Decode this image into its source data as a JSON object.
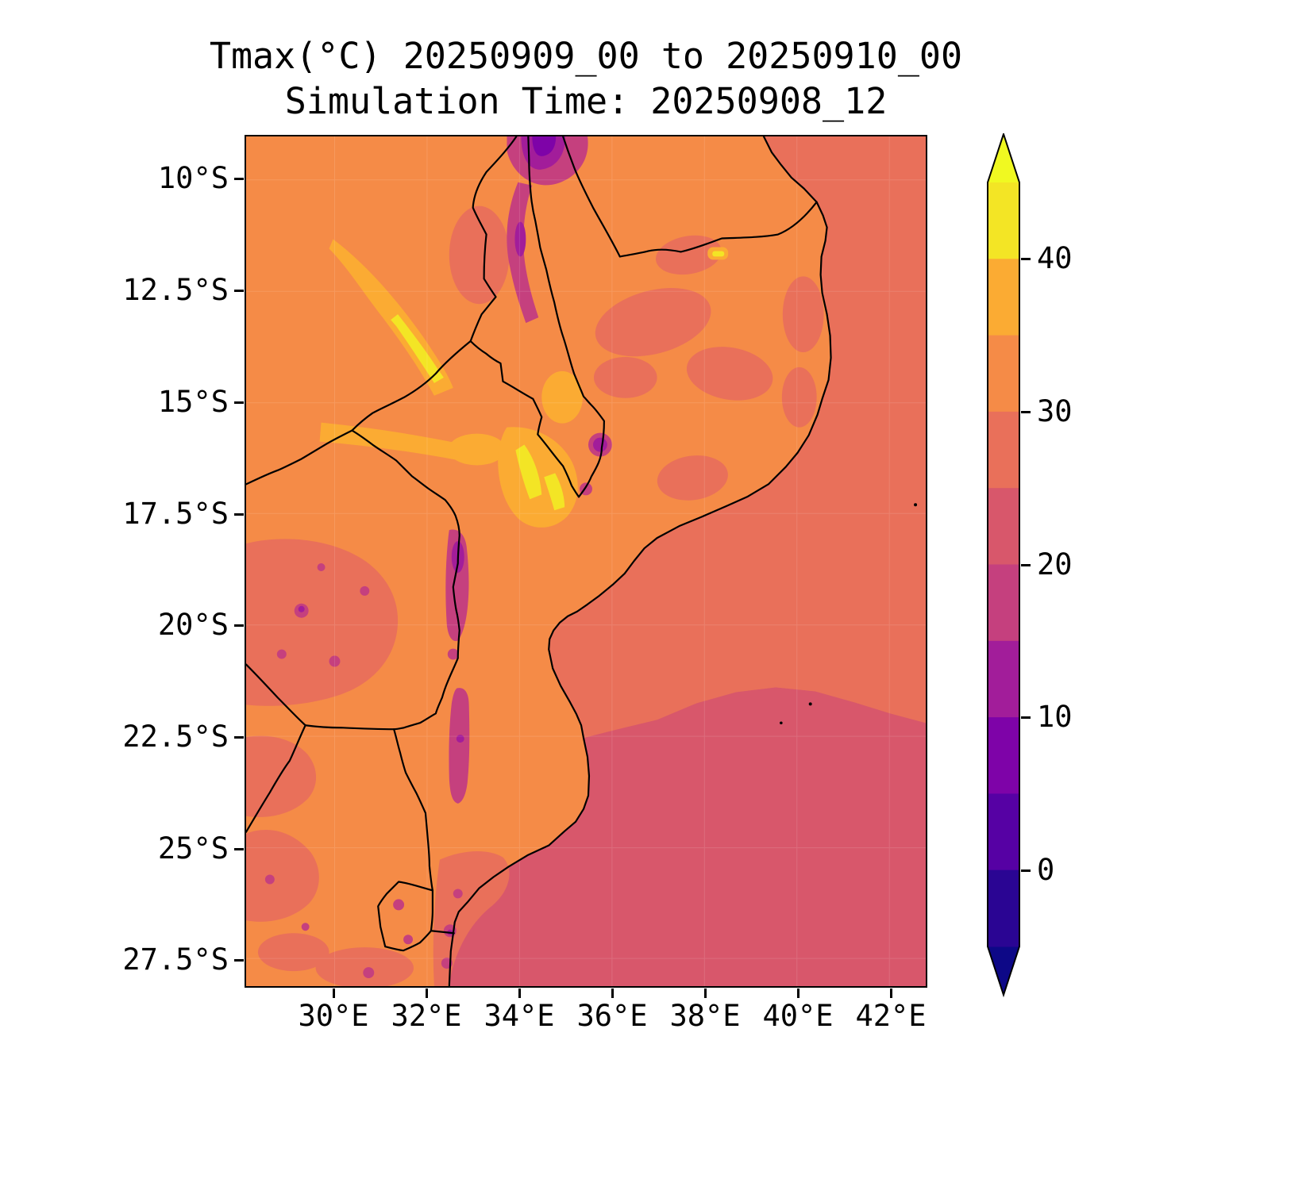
{
  "title": {
    "line1": "Tmax(°C) 20250909_00 to 20250910_00",
    "line2": "Simulation Time: 20250908_12"
  },
  "axes": {
    "y_tick_labels": [
      "10°S",
      "12.5°S",
      "15°S",
      "17.5°S",
      "20°S",
      "22.5°S",
      "25°S",
      "27.5°S"
    ],
    "x_tick_labels": [
      "30°E",
      "32°E",
      "34°E",
      "36°E",
      "38°E",
      "40°E",
      "42°E"
    ]
  },
  "colorbar": {
    "tick_labels": [
      "40",
      "30",
      "20",
      "10",
      "0"
    ],
    "bands_top_to_bottom": [
      "#f3e525",
      "#fbab33",
      "#f58b47",
      "#e9705a",
      "#d8576b",
      "#c5407e",
      "#a21d9a",
      "#7e03a8",
      "#5601a4",
      "#2a0593"
    ],
    "over_color": "#f0f921",
    "under_color": "#0d0887"
  },
  "palette": {
    "band_40_45": "#f3e525",
    "band_35_40": "#fbab33",
    "band_30_35": "#f58b47",
    "band_25_30": "#e9705a",
    "band_20_25": "#d8576b",
    "band_15_20": "#c5407e",
    "band_10_15": "#a21d9a",
    "band_5_10": "#7e03a8",
    "band_0_5": "#5601a4",
    "band_m5_0": "#2a0593",
    "over": "#f0f921",
    "under": "#0d0887",
    "border": "#000000"
  },
  "chart_data": {
    "type": "heatmap",
    "title": "Tmax(°C) 20250909_00 to 20250910_00",
    "subtitle": "Simulation Time: 20250908_12",
    "variable": "Tmax",
    "units": "°C",
    "x_tick_labels": [
      "30°E",
      "32°E",
      "34°E",
      "36°E",
      "38°E",
      "40°E",
      "42°E"
    ],
    "y_tick_labels": [
      "10°S",
      "12.5°S",
      "15°S",
      "17.5°S",
      "20°S",
      "22.5°S",
      "25°S",
      "27.5°S"
    ],
    "lon_range_deg_e": [
      28.1,
      42.8
    ],
    "lat_range_deg_s": [
      9.0,
      28.1
    ],
    "colorbar": {
      "ticks": [
        0,
        10,
        20,
        30,
        40
      ],
      "level_step": 5,
      "range": [
        -5,
        45
      ],
      "extend": "both",
      "colormap": "plasma"
    },
    "regions": [
      {
        "area": "most land (Mozambique interior, Malawi lowlands, Zambia)",
        "tmax_c": "30-35"
      },
      {
        "area": "northeastern ocean / Mozambique Channel north of ~21°S",
        "tmax_c": "25-30"
      },
      {
        "area": "southeastern ocean south of ~21°S",
        "tmax_c": "20-25"
      },
      {
        "area": "Luangwa valley and lower Shire/Zambezi valleys (hot streaks)",
        "tmax_c": "35-45"
      },
      {
        "area": "northern highlands near 9-11°S, 33.5-35°E",
        "tmax_c": "5-20"
      },
      {
        "area": "eastern Zimbabwe highlands ~18-19°S, 32.8°E",
        "tmax_c": "10-20"
      },
      {
        "area": "southwestern plateau and scattered highlands / south coast hills",
        "tmax_c": "25-30 with 15-20 spots"
      }
    ],
    "map_features": [
      "coastline of Mozambique and Tanzania",
      "national borders: Tanzania, Malawi, Zambia, Zimbabwe, Botswana, South Africa, Eswatini, Mozambique"
    ]
  }
}
